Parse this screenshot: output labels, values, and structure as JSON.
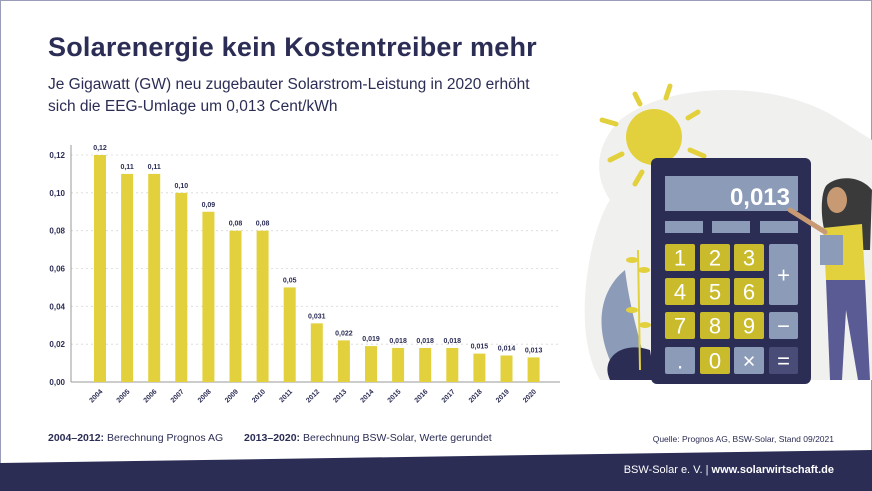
{
  "header": {
    "title": "Solarenergie kein Kostentreiber mehr",
    "subtitle_line1": "Je Gigawatt (GW) neu zugebauter Solarstrom-Leistung in 2020 erhöht",
    "subtitle_line2": "sich die EEG-Umlage um 0,013 Cent/kWh"
  },
  "chart_data": {
    "type": "bar",
    "title": "",
    "xlabel": "",
    "ylabel": "",
    "ylim": [
      0,
      0.12
    ],
    "yticks": [
      "0,00",
      "0,02",
      "0,04",
      "0,06",
      "0,08",
      "0,10",
      "0,12"
    ],
    "grid": true,
    "bar_color": "#e2d13d",
    "categories": [
      "2004",
      "2005",
      "2006",
      "2007",
      "2008",
      "2009",
      "2010",
      "2011",
      "2012",
      "2013",
      "2014",
      "2015",
      "2016",
      "2017",
      "2018",
      "2019",
      "2020"
    ],
    "values": [
      0.12,
      0.11,
      0.11,
      0.1,
      0.09,
      0.08,
      0.08,
      0.05,
      0.031,
      0.022,
      0.019,
      0.018,
      0.018,
      0.018,
      0.015,
      0.014,
      0.013
    ],
    "labels": [
      "0,12",
      "0,11",
      "0,11",
      "0,10",
      "0,09",
      "0,08",
      "0,08",
      "0,05",
      "0,031",
      "0,022",
      "0,019",
      "0,018",
      "0,018",
      "0,018",
      "0,015",
      "0,014",
      "0,013"
    ]
  },
  "notes": {
    "note1_bold": "2004–2012:",
    "note1_text": " Berechnung Prognos AG",
    "note2_bold": "2013–2020:",
    "note2_text": " Berechnung BSW-Solar, Werte gerundet",
    "source": "Quelle: Prognos AG, BSW-Solar, Stand 09/2021"
  },
  "footer": {
    "org": "BSW-Solar e. V. | ",
    "url": "www.solarwirtschaft.de"
  },
  "illustration": {
    "display": "0,013",
    "keys": [
      "1",
      "2",
      "3",
      "4",
      "5",
      "6",
      "7",
      "8",
      "9",
      ".",
      "0",
      "×",
      "+",
      "−",
      "="
    ]
  },
  "colors": {
    "navy": "#2b2d55",
    "yellow": "#e2d13d",
    "key_yellow": "#c9bb2c",
    "grey_blue": "#8c9cb8"
  }
}
